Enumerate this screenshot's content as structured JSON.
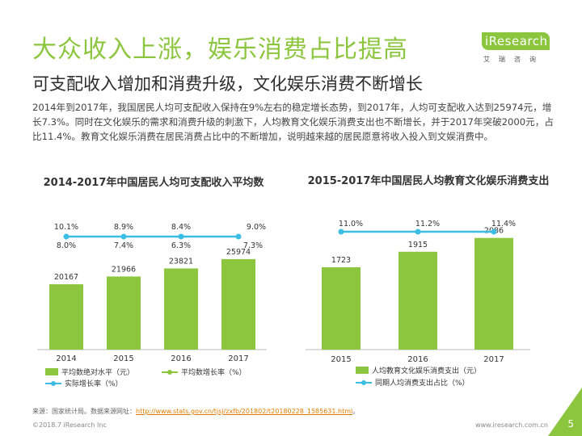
{
  "header": {
    "title": "大众收入上涨，娱乐消费占比提高",
    "subtitle": "可支配收入增加和消费升级，文化娱乐消费不断增长",
    "intro": "2014年到2017年，我国居民人均可支配收入保持在9%左右的稳定增长态势，到2017年，人均可支配收入达到25974元，增长7.3%。同时在文化娱乐的需求和消费升级的刺激下，人均教育文化娱乐消费支出也不断增长，并于2017年突破2000元，占比11.4%。教育文化娱乐消费在居民消费占比中的不断增加，说明越来越的居民愿意将收入投入到文娱消费中。"
  },
  "logo": {
    "brand": "iResearch",
    "cn": "艾瑞咨询"
  },
  "colors": {
    "accent": "#8cc63f",
    "line": "#3cbde3",
    "text": "#333333"
  },
  "chart_data": [
    {
      "type": "bar",
      "title": "2014-2017年中国居民人均可支配收入平均数",
      "categories": [
        "2014",
        "2015",
        "2016",
        "2017"
      ],
      "series": [
        {
          "name": "平均数绝对水平（元）",
          "type": "bar",
          "values": [
            20167,
            21966,
            23821,
            25974
          ],
          "color": "#8cc63f"
        },
        {
          "name": "平均数增长率（%）",
          "type": "line",
          "values": [
            10.1,
            8.9,
            8.4,
            9.0
          ],
          "color": "#8cc63f"
        },
        {
          "name": "实际增长率（%）",
          "type": "line",
          "values": [
            8.0,
            7.4,
            6.3,
            7.3
          ],
          "color": "#3cbde3"
        }
      ],
      "value_labels": {
        "bars": [
          "20167",
          "21966",
          "23821",
          "25974"
        ],
        "nominal_rate": [
          "10.1%",
          "8.9%",
          "8.4%",
          "9.0%"
        ],
        "real_rate": [
          "8.0%",
          "7.4%",
          "6.3%",
          "7.3%"
        ]
      },
      "grid": false,
      "legend": "bottom"
    },
    {
      "type": "bar",
      "title": "2015-2017年中国居民人均教育文化娱乐消费支出",
      "categories": [
        "2015",
        "2016",
        "2017"
      ],
      "series": [
        {
          "name": "人均教育文化娱乐消费支出（元）",
          "type": "bar",
          "values": [
            1723,
            1915,
            2086
          ],
          "color": "#8cc63f"
        },
        {
          "name": "同期人均消费支出占比（%）",
          "type": "line",
          "values": [
            11.0,
            11.2,
            11.4
          ],
          "color": "#3cbde3"
        }
      ],
      "value_labels": {
        "bars": [
          "1723",
          "1915",
          "2086"
        ],
        "share": [
          "11.0%",
          "11.2%",
          "11.4%"
        ]
      },
      "grid": false,
      "legend": "bottom"
    }
  ],
  "footer": {
    "source_prefix": "来源：国家统计局。数据来源网址：",
    "source_url": "http://www.stats.gov.cn/tjsj/zxfb/201802/t20180228_1585631.html",
    "source_suffix": "。",
    "copyright": "©2018.7 iResearch Inc",
    "website": "www.iresearch.com.cn",
    "page": "5"
  }
}
